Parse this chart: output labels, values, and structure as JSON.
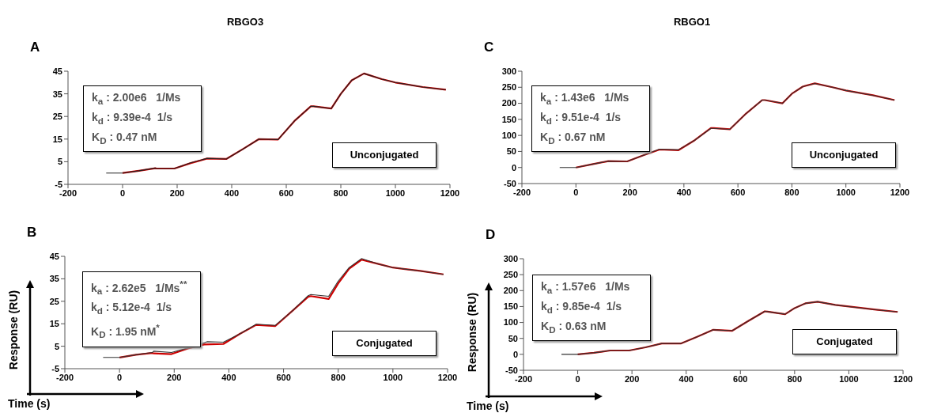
{
  "chart_data": [
    {
      "type": "line",
      "title": "RBGO3",
      "annotations": [
        "A",
        "k$_{a}$ : 2.00e6   1/Ms",
        "k$_{d}$ : 9.39e-4  1/s",
        "K$_{D}$ : 0.47 nM",
        "Unconjugated"
      ],
      "xlim": [
        -200,
        1200
      ],
      "xticks": [
        -200,
        0,
        200,
        400,
        600,
        800,
        1000,
        1200
      ],
      "ylim": [
        -5,
        45
      ],
      "yticks": [
        -5,
        5,
        15,
        25,
        35,
        45
      ],
      "grid": false,
      "legend": false,
      "marker": "none",
      "line_style": "solid",
      "series": [
        {
          "color": "#cc0000",
          "x": [
            0,
            60,
            120,
            125,
            190,
            250,
            310,
            380,
            440,
            500,
            570,
            630,
            690,
            700,
            765,
            800,
            840,
            885,
            950,
            1000,
            1100,
            1185
          ],
          "values": [
            0,
            1,
            2.1,
            2,
            2,
            4.4,
            6.4,
            6.2,
            10.5,
            15,
            14.8,
            23,
            29.5,
            29.5,
            28.5,
            35,
            41,
            44,
            41.5,
            40,
            38,
            36.8
          ]
        },
        {
          "color": "#222222",
          "x": [
            -60,
            0,
            60,
            120,
            125,
            190,
            250,
            310,
            380,
            440,
            500,
            570,
            630,
            690,
            700,
            765,
            800,
            840,
            885,
            950,
            1000,
            1100,
            1185
          ],
          "values": [
            0,
            0,
            1,
            2.2,
            2,
            2,
            4.5,
            6.5,
            6.2,
            10.5,
            15,
            14.8,
            23,
            29.5,
            29.5,
            28.5,
            35,
            41,
            44,
            41.5,
            40,
            38,
            36.8
          ]
        }
      ]
    },
    {
      "type": "line",
      "title": "RBGO1",
      "annotations": [
        "C",
        "k$_{a}$ : 1.43e6   1/Ms",
        "k$_{d}$ : 9.51e-4  1/s",
        "K$_{D}$ : 0.67 nM",
        "Unconjugated"
      ],
      "xlim": [
        -200,
        1200
      ],
      "xticks": [
        -200,
        0,
        200,
        400,
        600,
        800,
        1000,
        1200
      ],
      "ylim": [
        -50,
        300
      ],
      "yticks": [
        -50,
        0,
        50,
        100,
        150,
        200,
        250,
        300
      ],
      "grid": false,
      "legend": false,
      "marker": "none",
      "line_style": "solid",
      "series": [
        {
          "color": "#cc0000",
          "x": [
            0,
            60,
            120,
            190,
            250,
            310,
            380,
            440,
            500,
            510,
            570,
            630,
            690,
            700,
            765,
            800,
            840,
            885,
            950,
            1000,
            1100,
            1180
          ],
          "values": [
            0,
            10,
            20,
            19,
            38,
            56,
            54,
            85,
            123,
            123,
            119,
            168,
            210,
            210,
            200,
            230,
            252,
            262,
            250,
            240,
            225,
            210
          ]
        },
        {
          "color": "#333333",
          "x": [
            -60,
            0,
            60,
            120,
            190,
            250,
            310,
            380,
            440,
            500,
            510,
            570,
            630,
            690,
            700,
            765,
            800,
            840,
            885,
            950,
            1000,
            1100,
            1180
          ],
          "values": [
            0,
            0,
            10,
            20,
            19,
            38,
            57,
            55,
            85,
            122,
            122,
            119,
            168,
            210,
            210,
            200,
            230,
            252,
            262,
            250,
            240,
            225,
            210
          ]
        }
      ]
    },
    {
      "type": "line",
      "xlabel": "Time (s)",
      "ylabel": "Response (RU)",
      "annotations": [
        "B",
        "k$_{a}$ : 2.62e5   1/Ms$^{**}$",
        "k$_{d}$ : 5.12e-4  1/s",
        "K$_{D}$ : 1.95 nM$^{*}$",
        "Conjugated"
      ],
      "xlim": [
        -200,
        1200
      ],
      "xticks": [
        -200,
        0,
        200,
        400,
        600,
        800,
        1000,
        1200
      ],
      "ylim": [
        -5,
        45
      ],
      "yticks": [
        -5,
        5,
        15,
        25,
        35,
        45
      ],
      "grid": false,
      "legend": false,
      "marker": "none",
      "line_style": "solid",
      "series": [
        {
          "color": "#cc0000",
          "x": [
            0,
            60,
            120,
            125,
            190,
            250,
            310,
            380,
            440,
            500,
            570,
            630,
            690,
            700,
            765,
            800,
            840,
            885,
            950,
            1000,
            1100,
            1185
          ],
          "values": [
            0,
            1.2,
            2,
            1.8,
            1.5,
            4,
            5.8,
            6,
            10.5,
            14.5,
            14,
            20.5,
            27,
            27.3,
            26,
            33,
            39.5,
            43.5,
            41.5,
            40,
            38.5,
            37
          ]
        },
        {
          "color": "#333333",
          "x": [
            -60,
            0,
            60,
            120,
            125,
            190,
            250,
            310,
            320,
            380,
            440,
            500,
            570,
            630,
            690,
            700,
            765,
            800,
            840,
            885,
            950,
            1000,
            1100,
            1185
          ],
          "values": [
            0,
            0,
            1.2,
            2.2,
            2.8,
            2.2,
            4.2,
            6.5,
            7,
            6.8,
            10.5,
            14.8,
            14.3,
            20.5,
            27.5,
            28,
            27.2,
            34,
            40,
            44,
            41.5,
            40,
            38.5,
            37
          ]
        }
      ]
    },
    {
      "type": "line",
      "xlabel": "Time (s)",
      "ylabel": "Response (RU)",
      "annotations": [
        "D",
        "k$_{a}$ : 1.57e6   1/Ms",
        "k$_{d}$ : 9.85e-4  1/s",
        "K$_{D}$ : 0.63 nM",
        "Conjugated"
      ],
      "xlim": [
        -200,
        1200
      ],
      "xticks": [
        -200,
        0,
        200,
        400,
        600,
        800,
        1000,
        1200
      ],
      "ylim": [
        -50,
        300
      ],
      "yticks": [
        -50,
        0,
        50,
        100,
        150,
        200,
        250,
        300
      ],
      "grid": false,
      "legend": false,
      "marker": "none",
      "line_style": "solid",
      "series": [
        {
          "color": "#cc0000",
          "x": [
            0,
            60,
            120,
            190,
            250,
            310,
            380,
            440,
            500,
            570,
            630,
            690,
            700,
            765,
            800,
            840,
            885,
            950,
            1000,
            1100,
            1180
          ],
          "values": [
            0,
            5,
            12,
            12,
            22,
            34,
            34,
            55,
            77,
            74,
            105,
            135,
            134,
            126,
            145,
            160,
            165,
            155,
            150,
            140,
            133
          ]
        },
        {
          "color": "#333333",
          "x": [
            -60,
            0,
            60,
            120,
            190,
            250,
            310,
            380,
            440,
            500,
            570,
            630,
            690,
            700,
            765,
            800,
            840,
            885,
            950,
            1000,
            1100,
            1180
          ],
          "values": [
            0,
            0,
            5,
            12,
            12,
            22,
            34,
            34,
            55,
            77,
            74,
            105,
            135,
            134,
            126,
            145,
            160,
            165,
            155,
            150,
            140,
            133
          ]
        }
      ]
    }
  ]
}
